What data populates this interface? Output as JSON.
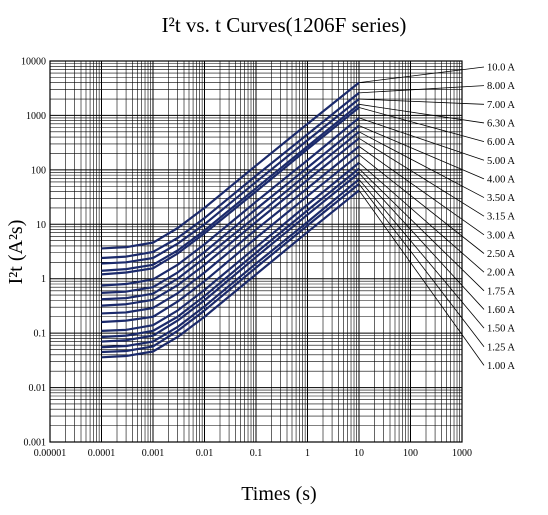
{
  "chart_data": {
    "type": "line",
    "title": "I²t  vs. t  Curves(1206F series)",
    "xlabel": "Times (s)",
    "ylabel": "I²t (A²s)",
    "x_scale": "log",
    "y_scale": "log",
    "xlim": [
      1e-05,
      1000
    ],
    "ylim": [
      0.001,
      10000
    ],
    "grid": true,
    "x_ticks": [
      "0.00001",
      "0.0001",
      "0.001",
      "0.01",
      "0.1",
      "1",
      "10",
      "100",
      "1000"
    ],
    "y_ticks": [
      "0.001",
      "0.01",
      "0.1",
      "1",
      "10",
      "100",
      "1000",
      "10000"
    ],
    "legend_position": "right",
    "line_color": "#1b2a6b",
    "x": [
      0.0001,
      0.0003,
      0.001,
      0.003,
      0.01,
      0.1,
      1,
      10
    ],
    "series": [
      {
        "name": "10.0 A",
        "values": [
          3.6,
          3.8,
          4.6,
          8.5,
          20,
          120,
          700,
          4000
        ]
      },
      {
        "name": "8.00 A",
        "values": [
          2.4,
          2.55,
          3.1,
          5.6,
          13,
          78,
          450,
          2600
        ]
      },
      {
        "name": "7.00 A",
        "values": [
          1.9,
          2.0,
          2.4,
          4.4,
          10,
          60,
          350,
          2000
        ]
      },
      {
        "name": "6.30 A",
        "values": [
          1.4,
          1.5,
          1.8,
          3.3,
          7.7,
          46,
          270,
          1600
        ]
      },
      {
        "name": "6.00 A",
        "values": [
          1.2,
          1.3,
          1.55,
          2.9,
          6.8,
          40,
          240,
          1400
        ]
      },
      {
        "name": "5.00 A",
        "values": [
          0.75,
          0.8,
          0.97,
          1.8,
          4.3,
          26,
          150,
          900
        ]
      },
      {
        "name": "4.00 A",
        "values": [
          0.55,
          0.58,
          0.7,
          1.3,
          3.1,
          19,
          110,
          650
        ]
      },
      {
        "name": "3.50 A",
        "values": [
          0.42,
          0.44,
          0.53,
          1.0,
          2.4,
          14,
          85,
          500
        ]
      },
      {
        "name": "3.15 A",
        "values": [
          0.32,
          0.34,
          0.41,
          0.76,
          1.8,
          11,
          65,
          380
        ]
      },
      {
        "name": "3.00 A",
        "values": [
          0.23,
          0.24,
          0.29,
          0.54,
          1.3,
          8,
          46,
          270
        ]
      },
      {
        "name": "2.50 A",
        "values": [
          0.16,
          0.17,
          0.2,
          0.38,
          0.9,
          5.6,
          33,
          190
        ]
      },
      {
        "name": "2.00 A",
        "values": [
          0.11,
          0.115,
          0.14,
          0.26,
          0.62,
          3.8,
          23,
          135
        ]
      },
      {
        "name": "1.75 A",
        "values": [
          0.085,
          0.09,
          0.11,
          0.2,
          0.48,
          3.0,
          18,
          105
        ]
      },
      {
        "name": "1.60 A",
        "values": [
          0.07,
          0.074,
          0.09,
          0.17,
          0.4,
          2.5,
          15,
          87
        ]
      },
      {
        "name": "1.50 A",
        "values": [
          0.055,
          0.058,
          0.07,
          0.13,
          0.31,
          1.9,
          11,
          67
        ]
      },
      {
        "name": "1.25 A",
        "values": [
          0.045,
          0.047,
          0.057,
          0.11,
          0.26,
          1.6,
          9.5,
          55
        ]
      },
      {
        "name": "1.00 A",
        "values": [
          0.036,
          0.038,
          0.046,
          0.085,
          0.2,
          1.2,
          7.2,
          42
        ]
      }
    ]
  }
}
